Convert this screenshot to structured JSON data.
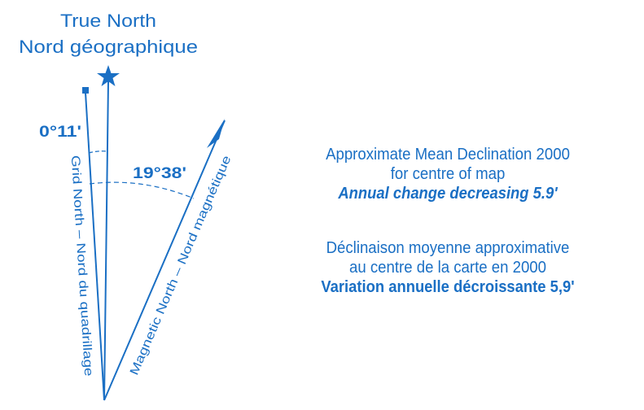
{
  "true_north": {
    "label_en": "True North",
    "label_fr": "Nord géographique",
    "icon": "star-icon"
  },
  "grid_north": {
    "label": "Grid North – Nord du quadrillage",
    "angle": "0°11'"
  },
  "magnetic_north": {
    "label": "Magnetic North – Nord magnétique",
    "angle": "19°38'"
  },
  "declination_en": {
    "line1": "Approximate Mean Declination 2000",
    "line2": "for centre of map",
    "line3": "Annual change decreasing 5.9'"
  },
  "declination_fr": {
    "line1": "Déclinaison moyenne approximative",
    "line2": "au centre de la carte en 2000",
    "line3": "Variation annuelle décroissante 5,9'"
  },
  "colors": {
    "ink": "#1a6fc4",
    "background": "#ffffff"
  }
}
